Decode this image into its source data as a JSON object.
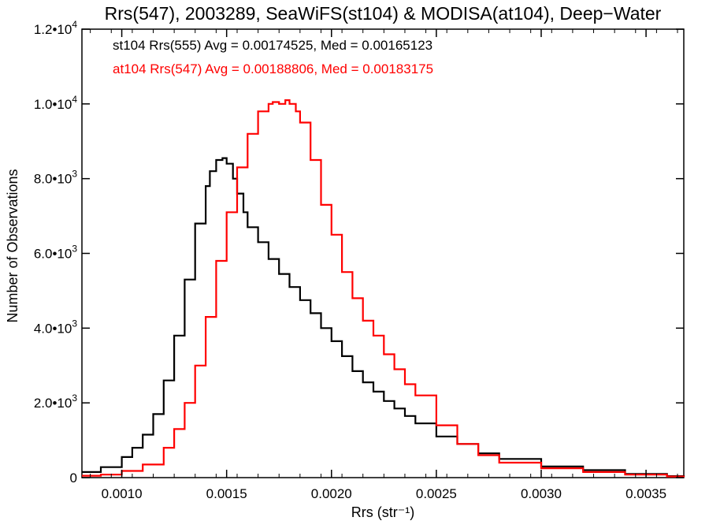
{
  "chart_data": {
    "type": "line",
    "title": "Rrs(547), 2003289, SeaWiFS(st104) & MODISA(at104), Deep−Water",
    "xlabel": "Rrs (str⁻¹)",
    "ylabel": "Number of Observations",
    "xlim": [
      0.00081,
      0.00368
    ],
    "ylim": [
      0,
      12000
    ],
    "step": true,
    "grid": false,
    "legend_position": "top-left",
    "x_ticks": [
      {
        "value": 0.001,
        "label": "0.0010"
      },
      {
        "value": 0.0015,
        "label": "0.0015"
      },
      {
        "value": 0.002,
        "label": "0.0020"
      },
      {
        "value": 0.0025,
        "label": "0.0025"
      },
      {
        "value": 0.003,
        "label": "0.0030"
      },
      {
        "value": 0.0035,
        "label": "0.0035"
      }
    ],
    "y_ticks": [
      {
        "value": 0,
        "mant": "0",
        "exp": ""
      },
      {
        "value": 2000,
        "mant": "2.0•10",
        "exp": "3"
      },
      {
        "value": 4000,
        "mant": "4.0•10",
        "exp": "3"
      },
      {
        "value": 6000,
        "mant": "6.0•10",
        "exp": "3"
      },
      {
        "value": 8000,
        "mant": "8.0•10",
        "exp": "3"
      },
      {
        "value": 10000,
        "mant": "1.0•10",
        "exp": "4"
      },
      {
        "value": 12000,
        "mant": "1.2•10",
        "exp": "4"
      }
    ],
    "series": [
      {
        "name": "st104 Rrs(555) Avg = 0.00174525, Med = 0.00165123",
        "color": "#000000",
        "x": [
          0.00081,
          0.0009,
          0.001,
          0.00105,
          0.0011,
          0.00115,
          0.0012,
          0.00125,
          0.0013,
          0.00135,
          0.0014,
          0.00142,
          0.00145,
          0.00148,
          0.0015,
          0.00153,
          0.00155,
          0.00158,
          0.0016,
          0.00165,
          0.0017,
          0.00175,
          0.0018,
          0.00185,
          0.0019,
          0.00195,
          0.002,
          0.00205,
          0.0021,
          0.00215,
          0.0022,
          0.00225,
          0.0023,
          0.00235,
          0.0024,
          0.0025,
          0.0026,
          0.0027,
          0.0028,
          0.003,
          0.0032,
          0.0034,
          0.0036,
          0.00368
        ],
        "y": [
          150,
          280,
          550,
          800,
          1150,
          1700,
          2600,
          3800,
          5300,
          6800,
          7800,
          8200,
          8500,
          8550,
          8400,
          8000,
          7600,
          7100,
          6700,
          6300,
          5850,
          5450,
          5100,
          4750,
          4400,
          4000,
          3650,
          3250,
          2850,
          2550,
          2300,
          2050,
          1850,
          1650,
          1450,
          1100,
          900,
          650,
          500,
          300,
          200,
          100,
          40,
          20
        ]
      },
      {
        "name": "at104 Rrs(547) Avg = 0.00188806, Med = 0.00183175",
        "color": "#ff0000",
        "x": [
          0.00081,
          0.0009,
          0.001,
          0.0011,
          0.0012,
          0.00125,
          0.0013,
          0.00135,
          0.0014,
          0.00145,
          0.0015,
          0.00155,
          0.0016,
          0.00165,
          0.0017,
          0.00172,
          0.00175,
          0.00178,
          0.0018,
          0.00183,
          0.00185,
          0.0019,
          0.00195,
          0.002,
          0.00205,
          0.0021,
          0.00215,
          0.0022,
          0.00225,
          0.0023,
          0.00235,
          0.0024,
          0.0025,
          0.0026,
          0.0027,
          0.0028,
          0.003,
          0.0032,
          0.0034,
          0.0036,
          0.00368
        ],
        "y": [
          50,
          80,
          180,
          350,
          800,
          1300,
          2000,
          3000,
          4300,
          5800,
          7100,
          8300,
          9200,
          9800,
          10000,
          10050,
          10000,
          10100,
          10000,
          9800,
          9500,
          8500,
          7300,
          6500,
          5500,
          4800,
          4200,
          3800,
          3300,
          2900,
          2500,
          2200,
          1400,
          900,
          600,
          400,
          250,
          150,
          80,
          30,
          10
        ]
      }
    ]
  }
}
